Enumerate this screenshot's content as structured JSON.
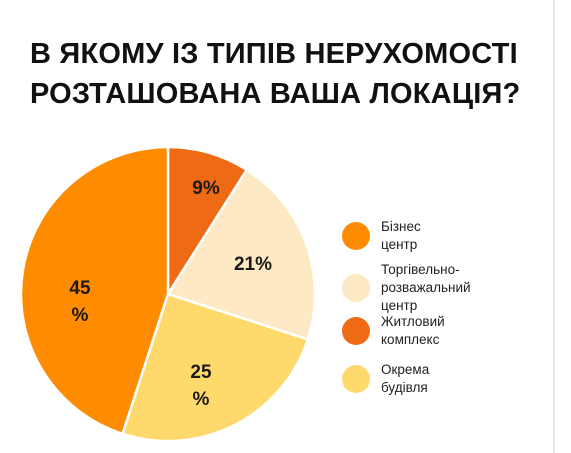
{
  "title_lines": [
    "В ЯКОМУ ІЗ ТИПІВ НЕРУХОМОСТІ",
    "РОЗТАШОВАНА ВАША ЛОКАЦІЯ?"
  ],
  "chart_data": {
    "type": "pie",
    "title": "В ЯКОМУ ІЗ ТИПІВ НЕРУХОМОСТІ РОЗТАШОВАНА ВАША ЛОКАЦІЯ?",
    "legend_position": "right",
    "slices": [
      {
        "label": "Житловий комплекс",
        "value": 9,
        "value_label": "9%",
        "color": "#EE6A14"
      },
      {
        "label": "Торгівельно-розважальний центр",
        "value": 21,
        "value_label": "21%",
        "color": "#FDE9C4"
      },
      {
        "label": "Окрема будівля",
        "value": 25,
        "value_label": "25\n%",
        "color": "#FFD96B"
      },
      {
        "label": "Бізнес центр",
        "value": 45,
        "value_label": "45\n%",
        "color": "#FF8C00"
      }
    ],
    "legend": [
      {
        "label": "Бізнес центр",
        "color": "#FF8C00"
      },
      {
        "label": "Торгівельно-\nрозважальний центр",
        "color": "#FDE9C4"
      },
      {
        "label": "Житловий комплекс",
        "color": "#EE6A14"
      },
      {
        "label": "Окрема будівля",
        "color": "#FFD96B"
      }
    ]
  }
}
